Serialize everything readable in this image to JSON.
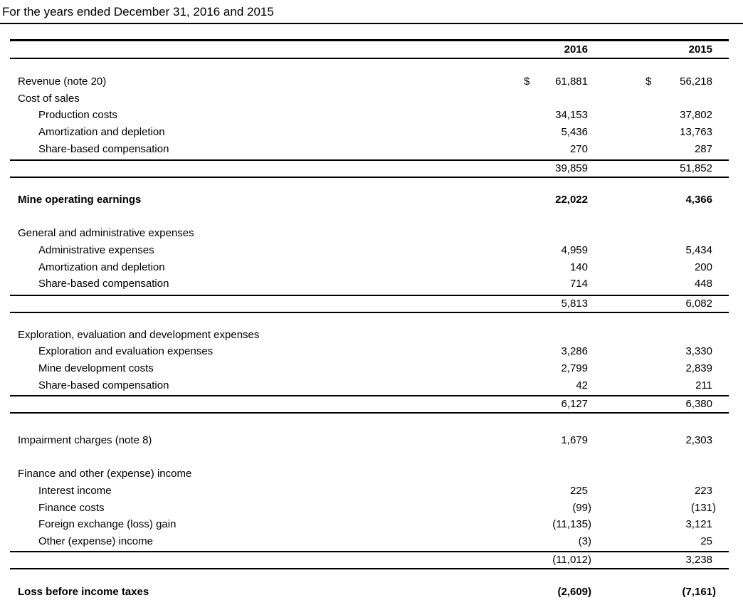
{
  "title": "For the years ended December 31, 2016 and 2015",
  "columns": [
    "2016",
    "2015"
  ],
  "currency_symbol": "$",
  "rows": [
    {
      "label": "Revenue (note 20)",
      "indent": 0,
      "bold": false,
      "values": [
        "61,881",
        "56,218"
      ],
      "currency": true
    },
    {
      "label": "Cost of sales",
      "indent": 0,
      "bold": false,
      "values": [
        "",
        ""
      ]
    },
    {
      "label": "Production costs",
      "indent": 1,
      "bold": false,
      "values": [
        "34,153",
        "37,802"
      ]
    },
    {
      "label": "Amortization and depletion",
      "indent": 1,
      "bold": false,
      "values": [
        "5,436",
        "13,763"
      ]
    },
    {
      "label": "Share-based compensation",
      "indent": 1,
      "bold": false,
      "values": [
        "270",
        "287"
      ]
    },
    {
      "label": "",
      "indent": 0,
      "bold": false,
      "values": [
        "39,859",
        "51,852"
      ],
      "subtotal": true
    },
    {
      "label": "Mine operating earnings",
      "indent": 0,
      "bold": true,
      "values": [
        "22,022",
        "4,366"
      ]
    },
    {
      "label": "General and administrative expenses",
      "indent": 0,
      "bold": false,
      "values": [
        "",
        ""
      ]
    },
    {
      "label": "Administrative expenses",
      "indent": 1,
      "bold": false,
      "values": [
        "4,959",
        "5,434"
      ]
    },
    {
      "label": "Amortization and depletion",
      "indent": 1,
      "bold": false,
      "values": [
        "140",
        "200"
      ]
    },
    {
      "label": "Share-based compensation",
      "indent": 1,
      "bold": false,
      "values": [
        "714",
        "448"
      ]
    },
    {
      "label": "",
      "indent": 0,
      "bold": false,
      "values": [
        "5,813",
        "6,082"
      ],
      "subtotal": true
    },
    {
      "label": "Exploration, evaluation and development expenses",
      "indent": 0,
      "bold": false,
      "values": [
        "",
        ""
      ]
    },
    {
      "label": "Exploration and evaluation expenses",
      "indent": 1,
      "bold": false,
      "values": [
        "3,286",
        "3,330"
      ]
    },
    {
      "label": "Mine development costs",
      "indent": 1,
      "bold": false,
      "values": [
        "2,799",
        "2,839"
      ]
    },
    {
      "label": "Share-based compensation",
      "indent": 1,
      "bold": false,
      "values": [
        "42",
        "211"
      ]
    },
    {
      "label": "",
      "indent": 0,
      "bold": false,
      "values": [
        "6,127",
        "6,380"
      ],
      "subtotal": true
    },
    {
      "label": "Impairment charges (note 8)",
      "indent": 0,
      "bold": false,
      "values": [
        "1,679",
        "2,303"
      ]
    },
    {
      "label": "Finance and other (expense) income",
      "indent": 0,
      "bold": false,
      "values": [
        "",
        ""
      ]
    },
    {
      "label": "Interest income",
      "indent": 1,
      "bold": false,
      "values": [
        "225",
        "223"
      ]
    },
    {
      "label": "Finance costs",
      "indent": 1,
      "bold": false,
      "values": [
        "(99)",
        "(131)"
      ]
    },
    {
      "label": "Foreign exchange (loss) gain",
      "indent": 1,
      "bold": false,
      "values": [
        "(11,135)",
        "3,121"
      ]
    },
    {
      "label": "Other (expense) income",
      "indent": 1,
      "bold": false,
      "values": [
        "(3)",
        "25"
      ]
    },
    {
      "label": "",
      "indent": 0,
      "bold": false,
      "values": [
        "(11,012)",
        "3,238"
      ],
      "subtotal": true
    },
    {
      "label": "Loss before income taxes",
      "indent": 0,
      "bold": true,
      "values": [
        "(2,609)",
        "(7,161)"
      ]
    }
  ]
}
